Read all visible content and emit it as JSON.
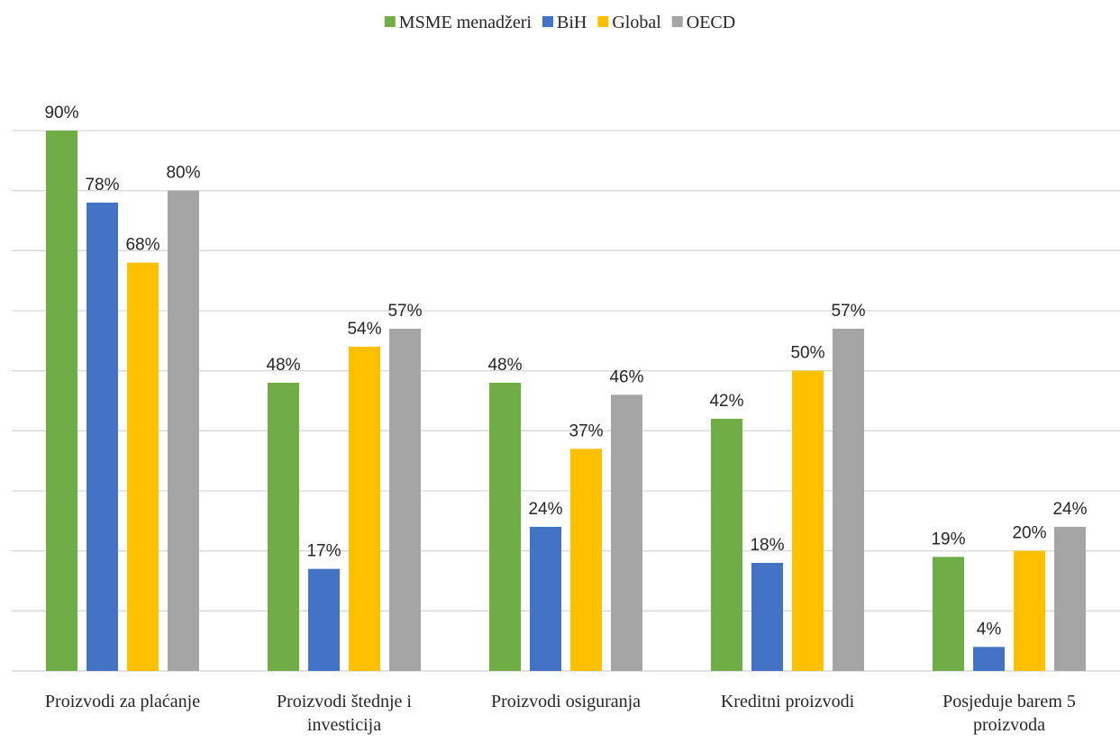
{
  "chart_data": {
    "type": "bar",
    "title": "",
    "xlabel": "",
    "ylabel": "",
    "ylim": [
      0,
      90
    ],
    "grid": true,
    "legend_position": "top",
    "categories": [
      [
        "Proizvodi za plaćanje"
      ],
      [
        "Proizvodi štednje i",
        "investicija"
      ],
      [
        "Proizvodi osiguranja"
      ],
      [
        "Kreditni proizvodi"
      ],
      [
        "Posjeduje barem 5",
        "proizvoda"
      ]
    ],
    "series": [
      {
        "name": "MSME menadžeri",
        "color": "#70AD47",
        "values": [
          90,
          48,
          48,
          42,
          19
        ],
        "labels": [
          "90%",
          "48%",
          "48%",
          "42%",
          "19%"
        ]
      },
      {
        "name": "BiH",
        "color": "#4472C4",
        "values": [
          78,
          17,
          24,
          18,
          4
        ],
        "labels": [
          "78%",
          "17%",
          "24%",
          "18%",
          "4%"
        ]
      },
      {
        "name": "Global",
        "color": "#FFC000",
        "values": [
          68,
          54,
          37,
          50,
          20
        ],
        "labels": [
          "68%",
          "54%",
          "37%",
          "50%",
          "20%"
        ]
      },
      {
        "name": "OECD",
        "color": "#A5A5A5",
        "values": [
          80,
          57,
          46,
          57,
          24
        ],
        "labels": [
          "80%",
          "57%",
          "46%",
          "57%",
          "24%"
        ]
      }
    ]
  }
}
